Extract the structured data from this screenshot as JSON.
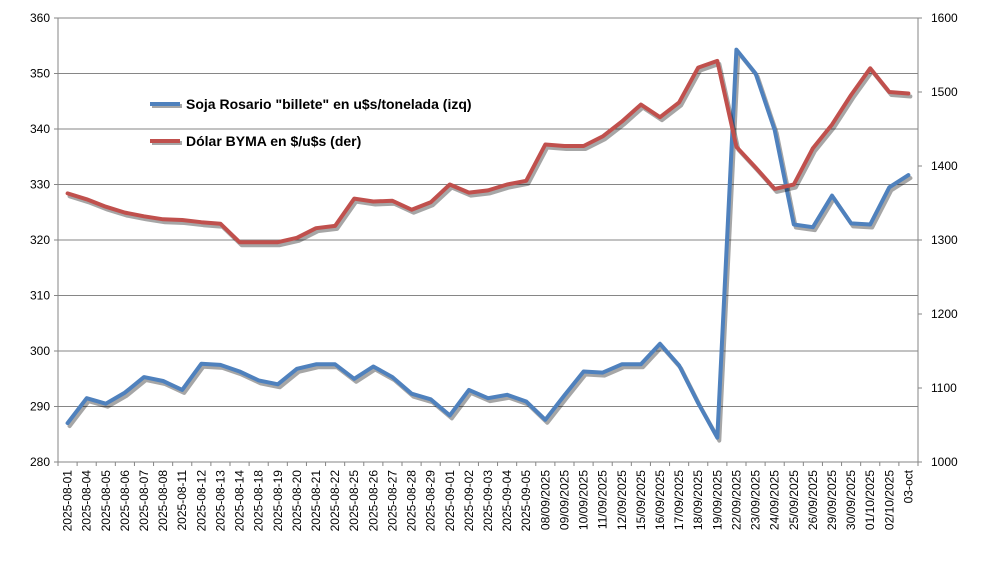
{
  "chart_data": {
    "type": "line",
    "categories": [
      "2025-08-01",
      "2025-08-04",
      "2025-08-05",
      "2025-08-06",
      "2025-08-07",
      "2025-08-08",
      "2025-08-11",
      "2025-08-12",
      "2025-08-13",
      "2025-08-14",
      "2025-08-18",
      "2025-08-19",
      "2025-08-20",
      "2025-08-21",
      "2025-08-22",
      "2025-08-25",
      "2025-08-26",
      "2025-08-27",
      "2025-08-28",
      "2025-08-29",
      "2025-09-01",
      "2025-09-02",
      "2025-09-03",
      "2025-09-04",
      "2025-09-05",
      "08/09/2025",
      "09/09/2025",
      "10/09/2025",
      "11/09/2025",
      "12/09/2025",
      "15/09/2025",
      "16/09/2025",
      "17/09/2025",
      "18/09/2025",
      "19/09/2025",
      "22/09/2025",
      "23/09/2025",
      "24/09/2025",
      "25/09/2025",
      "26/09/2025",
      "29/09/2025",
      "30/09/2025",
      "01/10/2025",
      "02/10/2025",
      "03-oct"
    ],
    "series": [
      {
        "name": "Soja Rosario \"billete\" en u$s/tonelada (izq)",
        "axis": "left",
        "color": "#4F81BD",
        "values": [
          287,
          291.5,
          290.5,
          292.5,
          295.3,
          294.6,
          293,
          297.7,
          297.5,
          296.3,
          294.7,
          294,
          296.8,
          297.6,
          297.6,
          295,
          297.2,
          295.3,
          292.3,
          291.3,
          288.4,
          293,
          291.5,
          292.1,
          290.9,
          287.6,
          292,
          296.3,
          296.1,
          297.6,
          297.6,
          301.3,
          297.4,
          290.6,
          284.4,
          354.3,
          350,
          339.8,
          322.8,
          322.3,
          328,
          323,
          322.8,
          329.5,
          331.7
        ]
      },
      {
        "name": "Dólar BYMA en $/u$s (der)",
        "axis": "right",
        "color": "#C0504D",
        "values": [
          1363,
          1355,
          1345,
          1337,
          1332,
          1328,
          1327,
          1324,
          1322,
          1297,
          1297,
          1297,
          1303,
          1316,
          1319,
          1356,
          1352,
          1353,
          1341,
          1351,
          1375,
          1364,
          1367,
          1375,
          1380,
          1429,
          1427,
          1427,
          1440,
          1460,
          1483,
          1466,
          1486,
          1533,
          1542,
          1426,
          1398,
          1369,
          1375,
          1424,
          1456,
          1496,
          1532,
          1500,
          1498
        ]
      }
    ],
    "left_axis": {
      "ylim": [
        280,
        360
      ],
      "ticks": [
        "280",
        "290",
        "300",
        "310",
        "320",
        "330",
        "340",
        "350",
        "360"
      ]
    },
    "right_axis": {
      "ylim": [
        1000,
        1600
      ],
      "ticks": [
        "1000",
        "1100",
        "1200",
        "1300",
        "1400",
        "1500",
        "1600"
      ]
    },
    "grid": "horizontal",
    "legend_placement": "upper-left inside",
    "title": "",
    "xlabel": "",
    "ylabel": ""
  }
}
